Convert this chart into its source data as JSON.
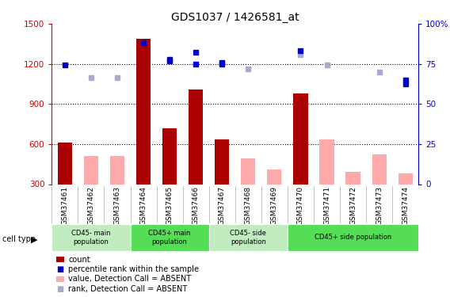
{
  "title": "GDS1037 / 1426581_at",
  "samples": [
    "GSM37461",
    "GSM37462",
    "GSM37463",
    "GSM37464",
    "GSM37465",
    "GSM37466",
    "GSM37467",
    "GSM37468",
    "GSM37469",
    "GSM37470",
    "GSM37471",
    "GSM37472",
    "GSM37473",
    "GSM37474"
  ],
  "count_present": [
    610,
    null,
    null,
    1390,
    720,
    1010,
    635,
    null,
    null,
    980,
    null,
    null,
    null,
    null
  ],
  "count_absent": [
    null,
    510,
    510,
    null,
    null,
    null,
    null,
    490,
    410,
    null,
    635,
    390,
    520,
    380
  ],
  "rank_present": [
    1190,
    null,
    null,
    1360,
    1220,
    1200,
    1200,
    null,
    null,
    null,
    null,
    null,
    null,
    1050
  ],
  "rank_absent": [
    null,
    1100,
    1100,
    null,
    null,
    null,
    null,
    1160,
    null,
    1270,
    1190,
    null,
    1140,
    null
  ],
  "percentile_present": [
    null,
    null,
    null,
    null,
    78,
    82,
    76,
    null,
    null,
    83,
    null,
    null,
    null,
    65
  ],
  "percentile_absent": [
    null,
    null,
    null,
    null,
    null,
    null,
    null,
    null,
    null,
    null,
    null,
    null,
    null,
    null
  ],
  "cell_groups": [
    {
      "label": "CD45- main\npopulation",
      "start": 0,
      "end": 3
    },
    {
      "label": "CD45+ main\npopulation",
      "start": 3,
      "end": 6
    },
    {
      "label": "CD45- side\npopulation",
      "start": 6,
      "end": 9
    },
    {
      "label": "CD45+ side population",
      "start": 9,
      "end": 14
    }
  ],
  "group_colors": [
    "#c0ecc0",
    "#55dd55",
    "#c0ecc0",
    "#55dd55"
  ],
  "ylim_left": [
    300,
    1500
  ],
  "ylim_right": [
    0,
    100
  ],
  "yticks_left": [
    300,
    600,
    900,
    1200,
    1500
  ],
  "yticks_right": [
    0,
    25,
    50,
    75,
    100
  ],
  "bar_color_present": "#aa0000",
  "bar_color_absent": "#ffaaaa",
  "square_color_present": "#0000cc",
  "square_color_absent": "#aaaacc",
  "bg_color": "#ffffff",
  "axis_color_left": "#cc0000",
  "axis_color_right": "#0000cc",
  "dotted_lines": [
    600,
    900,
    1200
  ]
}
